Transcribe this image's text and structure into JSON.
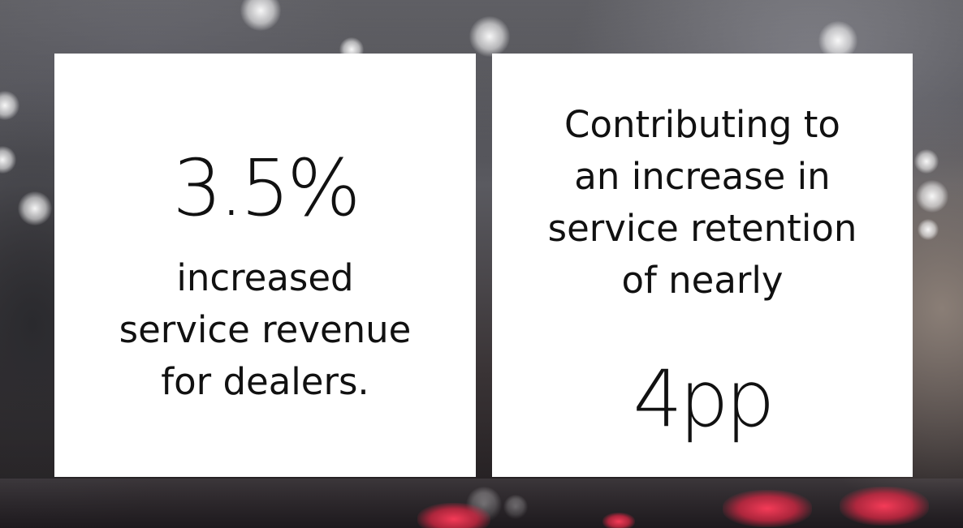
{
  "stats": [
    {
      "value": "3.5%",
      "description_lines": [
        "increased",
        "service revenue",
        "for dealers."
      ]
    },
    {
      "description_lines": [
        "Contributing to",
        "an increase in",
        "service retention",
        "of nearly"
      ],
      "value": "4pp"
    }
  ],
  "colors": {
    "card_background": "#ffffff",
    "text": "#111111",
    "tail_light": "#e8304f"
  }
}
